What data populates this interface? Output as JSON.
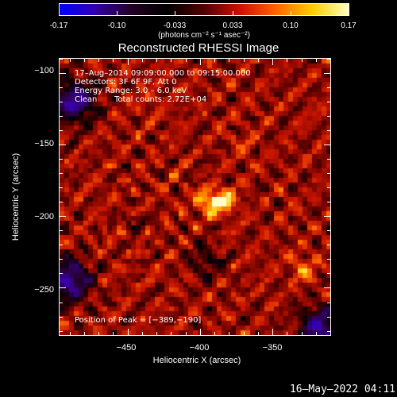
{
  "colorbar": {
    "ticks": [
      "-0.17",
      "-0.10",
      "-0.033",
      "0.033",
      "0.10",
      "0.17"
    ],
    "units": "(photons cm⁻² s⁻¹ asec⁻²)",
    "colors": [
      "#0000ff",
      "#3300aa",
      "#220022",
      "#000000",
      "#550000",
      "#cc1100",
      "#ff6600",
      "#ffcc00",
      "#ffffc0"
    ]
  },
  "plot": {
    "title": "Reconstructed RHESSI Image",
    "xlabel": "Heliocentric X (arcsec)",
    "ylabel": "Heliocentric Y (arcsec)",
    "xticks": [
      "−450",
      "−400",
      "−350"
    ],
    "yticks": [
      "−100",
      "−150",
      "−200",
      "−250"
    ],
    "xlim": [
      -497,
      -310
    ],
    "ylim": [
      -283,
      -90
    ]
  },
  "info": {
    "line1": "17–Aug–2014 09:09:00.000 to 09:15:00.000",
    "line2": "Detectors: 3F 6F 9F, Att 0",
    "line3": "Energy Range: 3.0 – 6.0 keV",
    "line4_left": "Clean",
    "line4_right": "Total counts: 2.72E+04",
    "peak": "Position of Peak = [−389,−190]"
  },
  "footer": {
    "timestamp": "16–May–2022 04:11"
  },
  "image_features": {
    "peak": [
      -389,
      -190
    ],
    "secondary_sources": [
      [
        -329,
        -237
      ],
      [
        -370,
        -150
      ],
      [
        -435,
        -120
      ]
    ],
    "negative_regions": [
      [
        -487,
        -120
      ],
      [
        -317,
        -278
      ],
      [
        -490,
        -245
      ]
    ]
  }
}
